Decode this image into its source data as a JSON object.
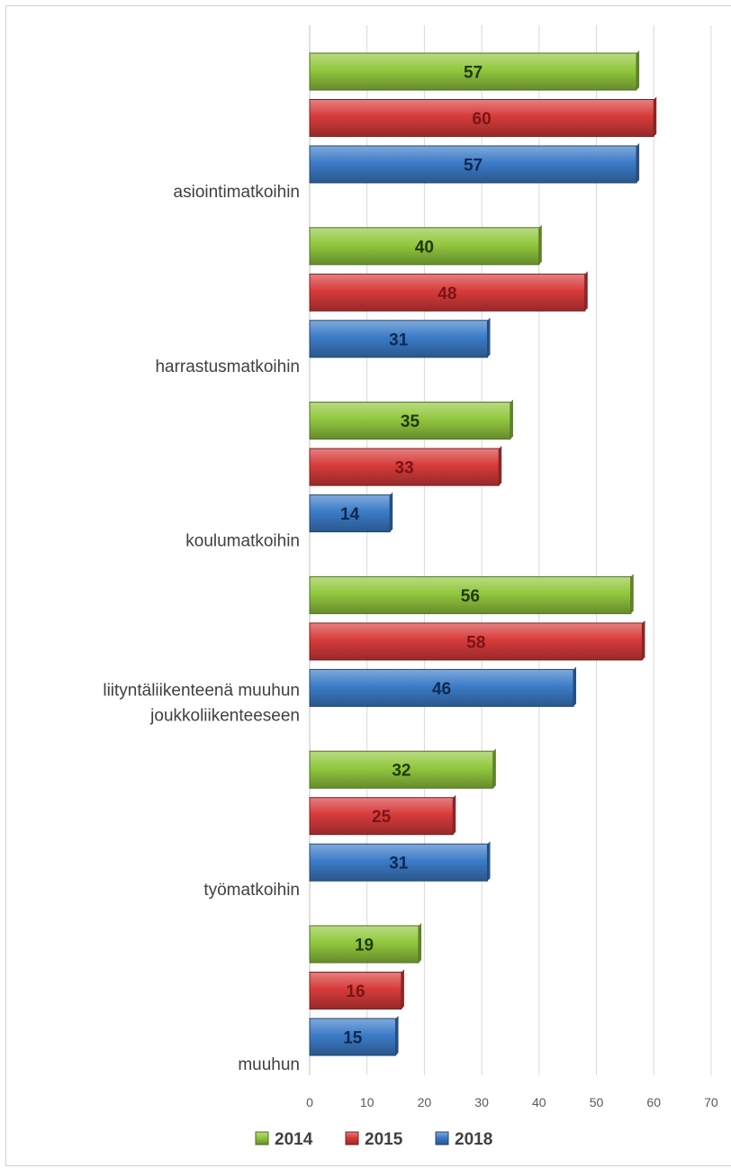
{
  "chart_data": {
    "type": "bar",
    "orientation": "horizontal",
    "categories": [
      "asiointimatkoihin",
      "harrastusmatkoihin",
      "koulumatkoihin",
      "liityntäliikenteenä muuhun joukkoliikenteeseen",
      "työmatkoihin",
      "muuhun"
    ],
    "category_lines": [
      [
        "asiointimatkoihin"
      ],
      [
        "harrastusmatkoihin"
      ],
      [
        "koulumatkoihin"
      ],
      [
        "liityntäliikenteenä muuhun",
        "joukkoliikenteeseen"
      ],
      [
        "työmatkoihin"
      ],
      [
        "muuhun"
      ]
    ],
    "series": [
      {
        "name": "2014",
        "color": "#92c83e",
        "values": [
          57,
          40,
          35,
          56,
          32,
          19
        ]
      },
      {
        "name": "2015",
        "color": "#d83b3b",
        "values": [
          60,
          48,
          33,
          58,
          25,
          16
        ]
      },
      {
        "name": "2018",
        "color": "#3c7cc8",
        "values": [
          57,
          31,
          14,
          46,
          31,
          15
        ]
      }
    ],
    "xlim": [
      0,
      70
    ],
    "xticks": [
      0,
      10,
      20,
      30,
      40,
      50,
      60,
      70
    ],
    "grid": true,
    "legend_position": "bottom",
    "title": "",
    "xlabel": "",
    "ylabel": ""
  }
}
